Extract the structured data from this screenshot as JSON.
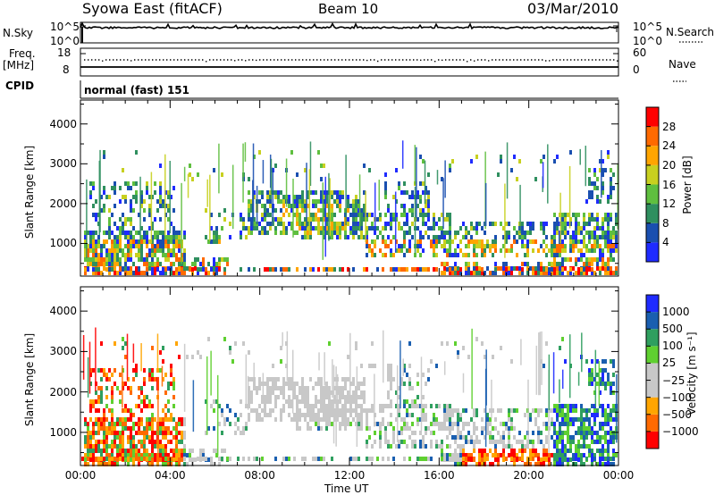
{
  "header": {
    "station": "Syowa East (fitACF)",
    "beam": "Beam 10",
    "date": "03/Mar/2010"
  },
  "side_labels": {
    "nsky": "N.Sky",
    "nsearch": "N.Search",
    "freq": "Freq.",
    "mhz": "[MHz]",
    "nave": "Nave",
    "cpid": "CPID"
  },
  "cpid_text": "normal (fast) 151",
  "colors": {
    "power_scale": [
      "#1f2bff",
      "#1a4fb0",
      "#2f8f5f",
      "#5fbf3f",
      "#c8d020",
      "#ffa500",
      "#ff6a00",
      "#ff0000"
    ],
    "velocity_scale": [
      "#ff0000",
      "#ff6a00",
      "#ffa500",
      "#c8c8c8",
      "#c8c8c8",
      "#5fd030",
      "#2f9f5f",
      "#1a5fb0",
      "#1f2bff"
    ]
  },
  "chart_data": [
    {
      "type": "line",
      "name": "nsky-nsearch",
      "y_ticks_left": [
        "10^5",
        "10^0"
      ],
      "y_ticks_right": [
        "10^5",
        "10^0"
      ],
      "legend_right": "N.Search"
    },
    {
      "type": "line",
      "name": "freq-nave",
      "y_ticks_left": [
        "18",
        "8"
      ],
      "y_ticks_right": [
        "60",
        "0"
      ],
      "freq_mhz": 12.5,
      "nave_value": 30,
      "legend_right": "Nave"
    },
    {
      "type": "heatmap",
      "name": "power",
      "ylabel": "Slant Range [km]",
      "yticks": [
        1000,
        2000,
        3000,
        4000
      ],
      "ylim": [
        180,
        4600
      ],
      "xlim": [
        0,
        24
      ],
      "colorbar_label": "Power [dB]",
      "colorbar_ticks": [
        "4",
        "8",
        "12",
        "16",
        "20",
        "24",
        "28"
      ]
    },
    {
      "type": "heatmap",
      "name": "velocity",
      "ylabel": "Slant Range [km]",
      "yticks": [
        1000,
        2000,
        3000,
        4000
      ],
      "ylim": [
        180,
        4600
      ],
      "xlim": [
        0,
        24
      ],
      "xlabel": "Time UT",
      "xticks": [
        "00:00",
        "04:00",
        "08:00",
        "12:00",
        "16:00",
        "20:00",
        "00:00"
      ],
      "colorbar_label": "Velocity [m s⁻¹]",
      "colorbar_ticks": [
        "1000",
        "500",
        "100",
        "25",
        "−25",
        "−100",
        "−500",
        "−1000"
      ]
    }
  ]
}
